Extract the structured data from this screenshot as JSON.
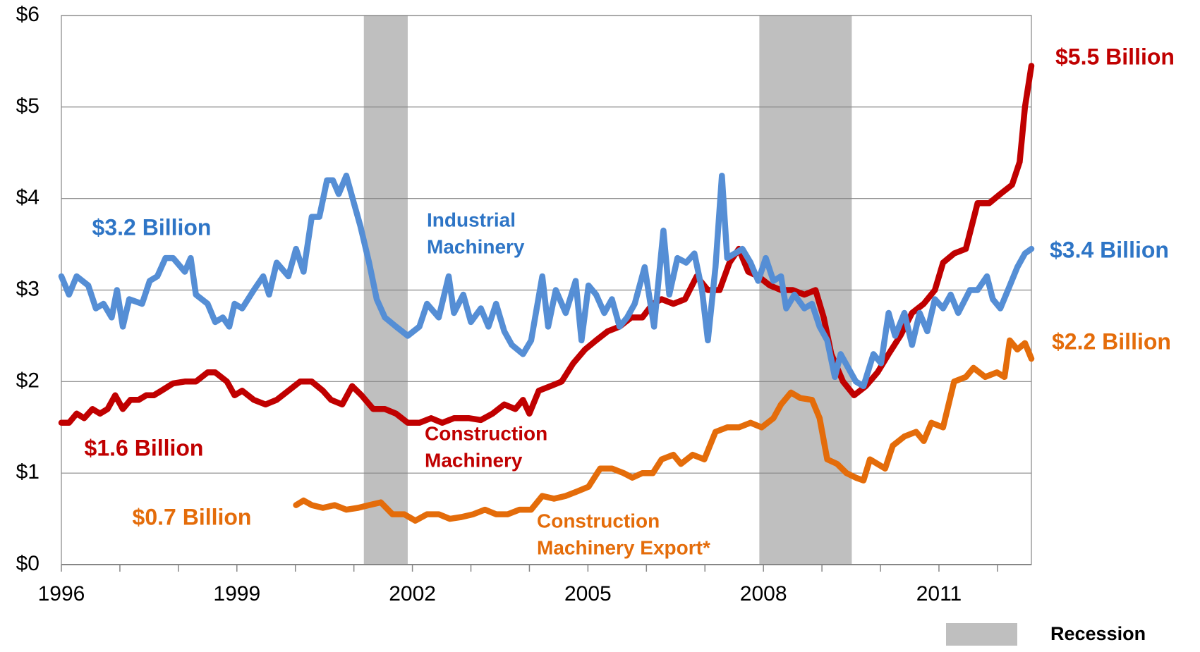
{
  "chart_data": {
    "type": "line",
    "xlim": [
      1996,
      2012.58
    ],
    "xticks": [
      1996,
      1999,
      2002,
      2005,
      2008,
      2011
    ],
    "xminor_ticks": [
      1997,
      1998,
      2000,
      2001,
      2003,
      2004,
      2006,
      2007,
      2009,
      2010,
      2012
    ],
    "ylim": [
      0,
      6
    ],
    "yticks": [
      {
        "value": 0,
        "label": "$0"
      },
      {
        "value": 1,
        "label": "$1"
      },
      {
        "value": 2,
        "label": "$2"
      },
      {
        "value": 3,
        "label": "$3"
      },
      {
        "value": 4,
        "label": "$4"
      },
      {
        "value": 5,
        "label": "$5"
      },
      {
        "value": 6,
        "label": "$6"
      }
    ],
    "grid": true,
    "recessions": [
      {
        "start": 2001.17,
        "end": 2001.92
      },
      {
        "start": 2007.93,
        "end": 2009.51
      }
    ],
    "recession_color": "#bfbfbf",
    "recession_legend": "Recession",
    "series": [
      {
        "name": "Industrial Machinery",
        "color": "#558ed5",
        "x": [
          1996.0,
          1996.13,
          1996.26,
          1996.46,
          1996.59,
          1996.72,
          1996.86,
          1996.95,
          1997.05,
          1997.16,
          1997.38,
          1997.51,
          1997.64,
          1997.78,
          1997.91,
          1998.11,
          1998.21,
          1998.3,
          1998.5,
          1998.63,
          1998.76,
          1998.87,
          1998.96,
          1999.09,
          1999.29,
          1999.45,
          1999.55,
          1999.68,
          1999.88,
          2000.01,
          2000.14,
          2000.28,
          2000.41,
          2000.54,
          2000.64,
          2000.74,
          2000.87,
          2001.0,
          2001.11,
          2001.26,
          2001.39,
          2001.53,
          2001.72,
          2001.92,
          2002.12,
          2002.25,
          2002.45,
          2002.62,
          2002.71,
          2002.87,
          2003.0,
          2003.17,
          2003.3,
          2003.43,
          2003.57,
          2003.7,
          2003.89,
          2004.03,
          2004.22,
          2004.32,
          2004.45,
          2004.62,
          2004.79,
          2004.89,
          2005.01,
          2005.14,
          2005.28,
          2005.41,
          2005.54,
          2005.67,
          2005.8,
          2005.97,
          2006.13,
          2006.29,
          2006.39,
          2006.53,
          2006.68,
          2006.82,
          2006.95,
          2007.05,
          2007.18,
          2007.29,
          2007.38,
          2007.51,
          2007.64,
          2007.78,
          2007.91,
          2008.04,
          2008.17,
          2008.3,
          2008.39,
          2008.53,
          2008.7,
          2008.83,
          2008.96,
          2009.09,
          2009.22,
          2009.32,
          2009.45,
          2009.58,
          2009.71,
          2009.88,
          2010.01,
          2010.14,
          2010.25,
          2010.41,
          2010.54,
          2010.67,
          2010.8,
          2010.93,
          2011.07,
          2011.2,
          2011.33,
          2011.53,
          2011.66,
          2011.82,
          2011.92,
          2012.05,
          2012.18,
          2012.34,
          2012.47,
          2012.58
        ],
        "values": [
          3.15,
          2.95,
          3.15,
          3.05,
          2.8,
          2.85,
          2.7,
          3.0,
          2.6,
          2.9,
          2.85,
          3.1,
          3.15,
          3.35,
          3.35,
          3.2,
          3.35,
          2.95,
          2.85,
          2.65,
          2.7,
          2.6,
          2.85,
          2.8,
          3.0,
          3.15,
          2.95,
          3.3,
          3.15,
          3.45,
          3.2,
          3.8,
          3.8,
          4.2,
          4.2,
          4.05,
          4.25,
          3.95,
          3.7,
          3.3,
          2.9,
          2.7,
          2.6,
          2.5,
          2.6,
          2.85,
          2.7,
          3.15,
          2.75,
          2.95,
          2.65,
          2.8,
          2.6,
          2.85,
          2.55,
          2.4,
          2.3,
          2.45,
          3.15,
          2.6,
          3.0,
          2.75,
          3.1,
          2.45,
          3.05,
          2.95,
          2.75,
          2.9,
          2.6,
          2.7,
          2.85,
          3.25,
          2.6,
          3.65,
          2.95,
          3.35,
          3.3,
          3.4,
          3.0,
          2.45,
          3.25,
          4.25,
          3.35,
          3.4,
          3.45,
          3.3,
          3.1,
          3.35,
          3.1,
          3.15,
          2.8,
          2.95,
          2.8,
          2.85,
          2.6,
          2.45,
          2.05,
          2.3,
          2.15,
          2.0,
          1.95,
          2.3,
          2.2,
          2.75,
          2.5,
          2.75,
          2.4,
          2.75,
          2.55,
          2.9,
          2.8,
          2.95,
          2.75,
          3.0,
          3.0,
          3.15,
          2.9,
          2.8,
          3.0,
          3.25,
          3.4,
          3.45
        ]
      },
      {
        "name": "Construction Machinery",
        "color": "#c00000",
        "x": [
          1996.0,
          1996.13,
          1996.26,
          1996.39,
          1996.53,
          1996.66,
          1996.79,
          1996.92,
          1997.05,
          1997.18,
          1997.32,
          1997.45,
          1997.58,
          1997.71,
          1997.91,
          1998.11,
          1998.3,
          1998.5,
          1998.63,
          1998.83,
          1998.96,
          1999.09,
          1999.29,
          1999.49,
          1999.68,
          1999.88,
          2000.08,
          2000.28,
          2000.47,
          2000.61,
          2000.8,
          2000.97,
          2001.13,
          2001.33,
          2001.53,
          2001.72,
          2001.92,
          2002.12,
          2002.32,
          2002.51,
          2002.71,
          2002.97,
          2003.17,
          2003.37,
          2003.57,
          2003.76,
          2003.89,
          2004.0,
          2004.16,
          2004.36,
          2004.55,
          2004.75,
          2004.95,
          2005.14,
          2005.34,
          2005.54,
          2005.74,
          2005.93,
          2006.11,
          2006.26,
          2006.46,
          2006.66,
          2006.86,
          2007.05,
          2007.25,
          2007.42,
          2007.58,
          2007.74,
          2007.91,
          2008.11,
          2008.3,
          2008.5,
          2008.7,
          2008.89,
          2009.03,
          2009.16,
          2009.36,
          2009.55,
          2009.75,
          2009.95,
          2010.14,
          2010.34,
          2010.54,
          2010.74,
          2010.93,
          2011.07,
          2011.26,
          2011.46,
          2011.66,
          2011.86,
          2012.05,
          2012.25,
          2012.38,
          2012.47,
          2012.58
        ],
        "values": [
          1.55,
          1.55,
          1.65,
          1.6,
          1.7,
          1.65,
          1.7,
          1.85,
          1.7,
          1.8,
          1.8,
          1.85,
          1.85,
          1.9,
          1.98,
          2.0,
          2.0,
          2.1,
          2.1,
          2.0,
          1.85,
          1.9,
          1.8,
          1.75,
          1.8,
          1.9,
          2.0,
          2.0,
          1.9,
          1.8,
          1.75,
          1.95,
          1.85,
          1.7,
          1.7,
          1.65,
          1.55,
          1.55,
          1.6,
          1.55,
          1.6,
          1.6,
          1.58,
          1.65,
          1.75,
          1.7,
          1.8,
          1.65,
          1.9,
          1.95,
          2.0,
          2.2,
          2.35,
          2.45,
          2.55,
          2.6,
          2.7,
          2.7,
          2.85,
          2.9,
          2.85,
          2.9,
          3.15,
          3.0,
          3.0,
          3.3,
          3.45,
          3.2,
          3.15,
          3.05,
          3.0,
          3.0,
          2.95,
          3.0,
          2.7,
          2.3,
          2.0,
          1.85,
          1.95,
          2.1,
          2.3,
          2.5,
          2.75,
          2.85,
          3.0,
          3.3,
          3.4,
          3.45,
          3.95,
          3.95,
          4.05,
          4.15,
          4.4,
          5.0,
          5.45
        ]
      },
      {
        "name": "Construction Machinery Export*",
        "color": "#e46c0a",
        "x": [
          2000.01,
          2000.14,
          2000.28,
          2000.47,
          2000.67,
          2000.87,
          2001.07,
          2001.26,
          2001.46,
          2001.66,
          2001.86,
          2002.05,
          2002.25,
          2002.45,
          2002.64,
          2002.84,
          2003.04,
          2003.24,
          2003.43,
          2003.63,
          2003.83,
          2004.03,
          2004.22,
          2004.42,
          2004.62,
          2004.82,
          2005.01,
          2005.21,
          2005.41,
          2005.61,
          2005.76,
          2005.93,
          2006.11,
          2006.26,
          2006.46,
          2006.59,
          2006.79,
          2006.99,
          2007.18,
          2007.38,
          2007.58,
          2007.78,
          2007.97,
          2008.17,
          2008.3,
          2008.47,
          2008.63,
          2008.83,
          2008.96,
          2009.09,
          2009.26,
          2009.42,
          2009.58,
          2009.71,
          2009.82,
          2009.95,
          2010.08,
          2010.21,
          2010.41,
          2010.61,
          2010.74,
          2010.87,
          2011.07,
          2011.26,
          2011.46,
          2011.59,
          2011.79,
          2011.99,
          2012.12,
          2012.21,
          2012.34,
          2012.47,
          2012.58
        ],
        "values": [
          0.65,
          0.7,
          0.65,
          0.62,
          0.65,
          0.6,
          0.62,
          0.65,
          0.68,
          0.55,
          0.55,
          0.48,
          0.55,
          0.55,
          0.5,
          0.52,
          0.55,
          0.6,
          0.55,
          0.55,
          0.6,
          0.6,
          0.75,
          0.72,
          0.75,
          0.8,
          0.85,
          1.05,
          1.05,
          1.0,
          0.95,
          1.0,
          1.0,
          1.15,
          1.2,
          1.1,
          1.2,
          1.15,
          1.45,
          1.5,
          1.5,
          1.55,
          1.5,
          1.6,
          1.75,
          1.88,
          1.82,
          1.8,
          1.6,
          1.15,
          1.1,
          1.0,
          0.95,
          0.92,
          1.15,
          1.1,
          1.05,
          1.3,
          1.4,
          1.45,
          1.35,
          1.55,
          1.5,
          2.0,
          2.05,
          2.15,
          2.05,
          2.1,
          2.05,
          2.45,
          2.35,
          2.42,
          2.25
        ]
      }
    ],
    "annotations": [
      {
        "lines": [
          "$3.2 Billion"
        ],
        "color": "#2e75c6"
      },
      {
        "lines": [
          "Industrial",
          "Machinery"
        ],
        "color": "#2e75c6"
      },
      {
        "lines": [
          "$1.6 Billion"
        ],
        "color": "#c00000"
      },
      {
        "lines": [
          "Construction",
          "Machinery"
        ],
        "color": "#c00000"
      },
      {
        "lines": [
          "$0.7 Billion"
        ],
        "color": "#e46c0a"
      },
      {
        "lines": [
          "Construction",
          "Machinery Export*"
        ],
        "color": "#e46c0a"
      },
      {
        "lines": [
          "$5.5 Billion"
        ],
        "color": "#c00000"
      },
      {
        "lines": [
          "$3.4 Billion"
        ],
        "color": "#2e75c6"
      },
      {
        "lines": [
          "$2.2 Billion"
        ],
        "color": "#e46c0a"
      }
    ]
  }
}
